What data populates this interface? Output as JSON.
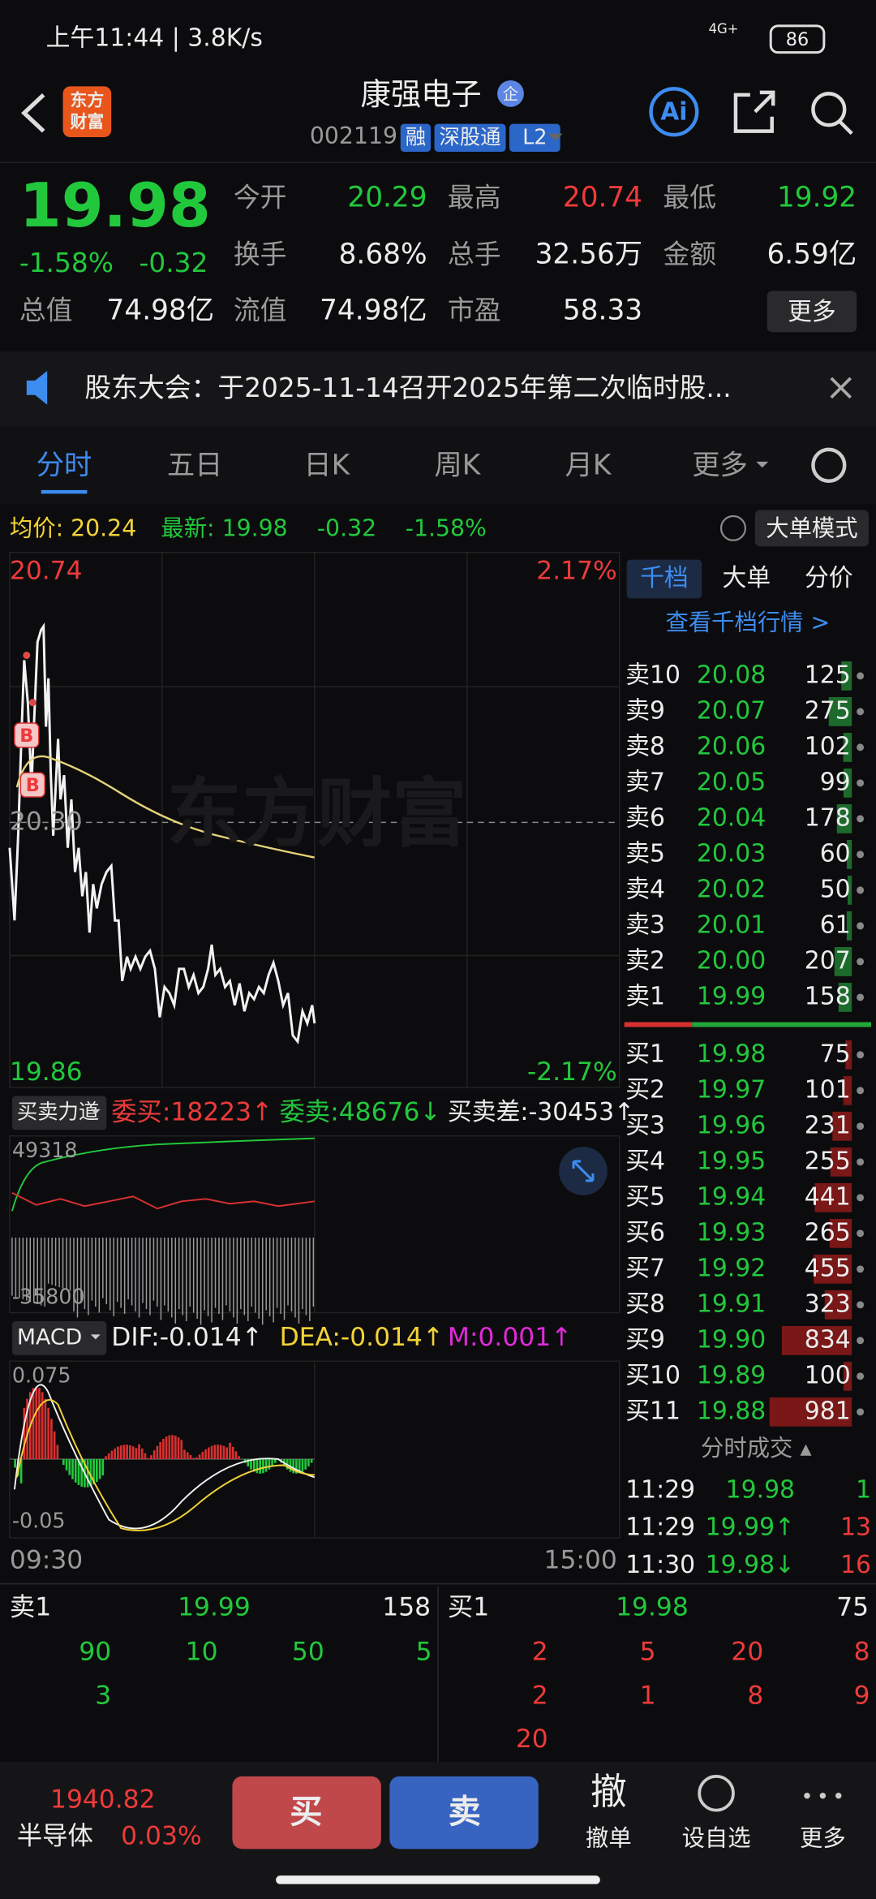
{
  "status_bar": {
    "time": "上午11:44 | 3.8K/s",
    "network": "4G+",
    "battery": "86"
  },
  "header": {
    "logo": [
      "东方",
      "财富"
    ],
    "name": "康强电子",
    "badge": "企",
    "code": "002119",
    "tags": [
      "融",
      "深股通",
      "L2"
    ]
  },
  "quote": {
    "price": "19.98",
    "change_pct": "-1.58%",
    "change": "-0.32",
    "fields": [
      {
        "label": "今开",
        "value": "20.29"
      },
      {
        "label": "最高",
        "value": "20.74"
      },
      {
        "label": "最低",
        "value": "19.92"
      },
      {
        "label": "换手",
        "value": "8.68%"
      },
      {
        "label": "总手",
        "value": "32.56万"
      },
      {
        "label": "金额",
        "value": "6.59亿"
      },
      {
        "label": "总值",
        "value": "74.98亿"
      },
      {
        "label": "流值",
        "value": "74.98亿"
      },
      {
        "label": "市盈",
        "value": "58.33"
      }
    ],
    "more": "更多"
  },
  "notice": {
    "text": "股东大会：于2025-11-14召开2025年第二次临时股..."
  },
  "tabs": [
    "分时",
    "五日",
    "日K",
    "周K",
    "月K",
    "更多"
  ],
  "summary": {
    "avg": "均价: 20.24",
    "latest": "最新: 19.98",
    "change": "-0.32",
    "change_pct": "-1.58%",
    "mode": "大单模式"
  },
  "price_chart": {
    "high": "20.74",
    "high_pct": "2.17%",
    "low": "19.86",
    "low_pct": "-2.17%",
    "prev_close": "20.30",
    "watermark": "东方财富",
    "markers": [
      "B",
      "B"
    ],
    "times": [
      "09:30",
      "15:00"
    ]
  },
  "indicator": {
    "name": "买卖力道",
    "bid": "委买:18223↑",
    "ask": "委卖:48676↓",
    "diff": "买卖差:-30453↑",
    "top": "49318",
    "bottom": "-35800"
  },
  "macd": {
    "name": "MACD",
    "dif": "DIF:-0.014↑",
    "dea": "DEA:-0.014↑",
    "m": "M:0.001↑",
    "top": "0.075",
    "bottom": "-0.05"
  },
  "order_book": {
    "tabs": [
      "千档",
      "大单",
      "分价"
    ],
    "link": "查看千档行情 >",
    "asks": [
      {
        "label": "卖10",
        "price": "20.08",
        "volume": 125
      },
      {
        "label": "卖9",
        "price": "20.07",
        "volume": 275
      },
      {
        "label": "卖8",
        "price": "20.06",
        "volume": 102
      },
      {
        "label": "卖7",
        "price": "20.05",
        "volume": 99
      },
      {
        "label": "卖6",
        "price": "20.04",
        "volume": 178
      },
      {
        "label": "卖5",
        "price": "20.03",
        "volume": 60
      },
      {
        "label": "卖4",
        "price": "20.02",
        "volume": 50
      },
      {
        "label": "卖3",
        "price": "20.01",
        "volume": 61
      },
      {
        "label": "卖2",
        "price": "20.00",
        "volume": 207
      },
      {
        "label": "卖1",
        "price": "19.99",
        "volume": 158
      }
    ],
    "bids": [
      {
        "label": "买1",
        "price": "19.98",
        "volume": 75
      },
      {
        "label": "买2",
        "price": "19.97",
        "volume": 101
      },
      {
        "label": "买3",
        "price": "19.96",
        "volume": 231
      },
      {
        "label": "买4",
        "price": "19.95",
        "volume": 255
      },
      {
        "label": "买5",
        "price": "19.94",
        "volume": 441
      },
      {
        "label": "买6",
        "price": "19.93",
        "volume": 265
      },
      {
        "label": "买7",
        "price": "19.92",
        "volume": 455
      },
      {
        "label": "买8",
        "price": "19.91",
        "volume": 323
      },
      {
        "label": "买9",
        "price": "19.90",
        "volume": 834
      },
      {
        "label": "买10",
        "price": "19.89",
        "volume": 100
      },
      {
        "label": "买11",
        "price": "19.88",
        "volume": 981
      }
    ],
    "trades_title": "分时成交 ▴",
    "trades": [
      {
        "time": "11:29",
        "price": "19.98",
        "volume": "1"
      },
      {
        "time": "11:29",
        "price": "19.99↑",
        "volume": "13"
      },
      {
        "time": "11:30",
        "price": "19.98↓",
        "volume": "16"
      }
    ]
  },
  "queue": {
    "ask": {
      "label": "卖1",
      "price": "19.99",
      "volume": "158",
      "orders": [
        "90",
        "10",
        "50",
        "5",
        "3"
      ]
    },
    "bid": {
      "label": "买1",
      "price": "19.98",
      "volume": "75",
      "orders": [
        "2",
        "5",
        "20",
        "8",
        "2",
        "1",
        "8",
        "9",
        "20"
      ]
    }
  },
  "bottom_bar": {
    "index_value": "1940.82",
    "index_name": "半导体",
    "index_change": "0.03%",
    "buy": "买",
    "sell": "卖",
    "cancel_icon": "撤",
    "cancel": "撤单",
    "watch": "设自选",
    "more": "更多"
  }
}
